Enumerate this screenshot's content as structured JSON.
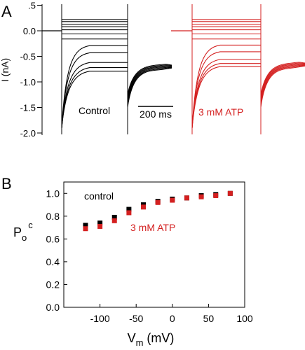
{
  "panels": {
    "a_label": "A",
    "b_label": "B"
  },
  "chart_data": [
    {
      "panel": "A",
      "type": "line",
      "ylabel": "I (nA)",
      "ylim": [
        -2.0,
        0.5
      ],
      "yticks": [
        "-2.0",
        "-1.5",
        "-1.0",
        "-0.5",
        "0.0",
        ".5"
      ],
      "ytick_values": [
        -2.0,
        -1.5,
        -1.0,
        -0.5,
        0.0,
        0.5
      ],
      "scale_bar": {
        "label": "200 ms",
        "duration_ms": 200
      },
      "colors": {
        "control": "#000000",
        "atp": "#d42020"
      },
      "series": [
        {
          "name": "Control",
          "step_steady_nA": [
            0.22,
            0.18,
            0.13,
            0.08,
            0.02,
            -0.06,
            -0.16,
            -0.29,
            -0.43,
            -0.62,
            -0.72,
            -0.79
          ],
          "tail_nA": [
            -0.75,
            -0.7
          ]
        },
        {
          "name": "3 mM ATP",
          "step_steady_nA": [
            0.22,
            0.18,
            0.13,
            0.08,
            0.02,
            -0.06,
            -0.16,
            -0.28,
            -0.41,
            -0.56,
            -0.64,
            -0.7
          ],
          "tail_nA": [
            -0.72,
            -0.66
          ]
        }
      ]
    },
    {
      "panel": "B",
      "type": "scatter",
      "xlabel_main": "V",
      "xlabel_sub": "m",
      "xlabel_unit": " (mV)",
      "ylabel_main": "P",
      "ylabel_sub": "o",
      "ylabel_sup": "c",
      "xlim": [
        -150,
        100
      ],
      "ylim": [
        0.0,
        1.1
      ],
      "xticks": [
        "-100",
        "-50",
        "0",
        "50",
        "100"
      ],
      "xtick_values": [
        -100,
        -50,
        0,
        50,
        100
      ],
      "yticks": [
        "0.0",
        "0.2",
        "0.4",
        "0.6",
        "0.8",
        "1.0"
      ],
      "ytick_values": [
        0.0,
        0.2,
        0.4,
        0.6,
        0.8,
        1.0
      ],
      "x": [
        -120,
        -100,
        -80,
        -60,
        -40,
        -20,
        0,
        20,
        40,
        60,
        80
      ],
      "series": [
        {
          "name": "control",
          "color": "#000000",
          "values": [
            0.72,
            0.74,
            0.79,
            0.86,
            0.9,
            0.93,
            0.95,
            0.96,
            0.98,
            0.99,
            1.0
          ],
          "errors": [
            0.02,
            0.02,
            0.015,
            0.015,
            0.01,
            0.01,
            0.01,
            0.01,
            0.01,
            0.01,
            0.005
          ]
        },
        {
          "name": "3 mM ATP",
          "color": "#d42020",
          "values": [
            0.69,
            0.71,
            0.76,
            0.83,
            0.88,
            0.92,
            0.94,
            0.96,
            0.97,
            0.98,
            1.0
          ],
          "errors": [
            0.02,
            0.02,
            0.015,
            0.015,
            0.01,
            0.01,
            0.01,
            0.01,
            0.01,
            0.01,
            0.005
          ]
        }
      ]
    }
  ]
}
